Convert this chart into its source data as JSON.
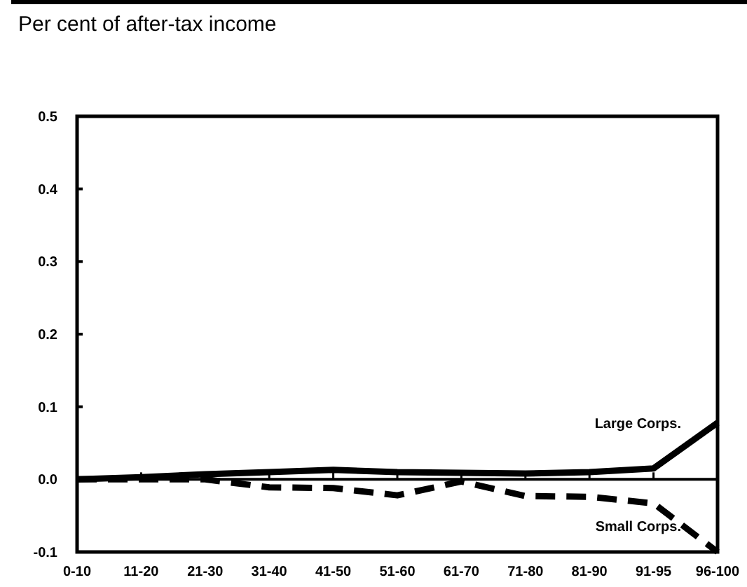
{
  "chart_data": {
    "type": "line",
    "title": "Per cent of after-tax income",
    "categories": [
      "0-10",
      "11-20",
      "21-30",
      "31-40",
      "41-50",
      "51-60",
      "61-70",
      "71-80",
      "81-90",
      "91-95",
      "96-100"
    ],
    "series": [
      {
        "name": "Large Corps.",
        "color": "#000000",
        "line_style": "solid",
        "values": [
          0.0,
          0.003,
          0.007,
          0.01,
          0.013,
          0.01,
          0.009,
          0.008,
          0.01,
          0.015,
          0.078
        ]
      },
      {
        "name": "Small Corps.",
        "color": "#000000",
        "line_style": "dashed",
        "values": [
          0.0,
          0.0,
          0.0,
          -0.011,
          -0.012,
          -0.022,
          -0.003,
          -0.023,
          -0.024,
          -0.033,
          -0.1
        ]
      }
    ],
    "ylim": [
      -0.1,
      0.5
    ],
    "yticks": [
      {
        "value": -0.1,
        "label": "-0.1"
      },
      {
        "value": 0,
        "label": "0.0"
      },
      {
        "value": 0.1,
        "label": "0.1"
      },
      {
        "value": 0.2,
        "label": "0.2"
      },
      {
        "value": 0.3,
        "label": "0.3"
      },
      {
        "value": 0.4,
        "label": "0.4"
      },
      {
        "value": 0.5,
        "label": "0.5"
      }
    ],
    "marker": "none"
  }
}
